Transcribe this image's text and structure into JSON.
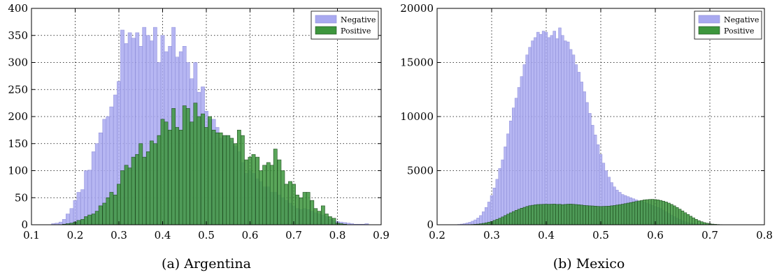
{
  "chart_data": [
    {
      "type": "bar",
      "caption": "(a) Argentina",
      "xlim": [
        0.1,
        0.9
      ],
      "ylim": [
        0,
        400
      ],
      "xticks": [
        "0.1",
        "0.2",
        "0.3",
        "0.4",
        "0.5",
        "0.6",
        "0.7",
        "0.8",
        "0.9"
      ],
      "yticks": [
        "0",
        "50",
        "100",
        "150",
        "200",
        "250",
        "300",
        "350",
        "400"
      ],
      "grid": true,
      "legend": "top-right",
      "bin_width": 0.00833,
      "series": [
        {
          "name": "Negative",
          "color": "#a9a9f0",
          "x": [
            0.15,
            0.158,
            0.167,
            0.175,
            0.183,
            0.192,
            0.2,
            0.208,
            0.217,
            0.225,
            0.233,
            0.242,
            0.25,
            0.258,
            0.267,
            0.275,
            0.283,
            0.292,
            0.3,
            0.308,
            0.317,
            0.325,
            0.333,
            0.342,
            0.35,
            0.358,
            0.367,
            0.375,
            0.383,
            0.392,
            0.4,
            0.408,
            0.417,
            0.425,
            0.433,
            0.442,
            0.45,
            0.458,
            0.467,
            0.475,
            0.483,
            0.492,
            0.5,
            0.508,
            0.517,
            0.525,
            0.533,
            0.542,
            0.55,
            0.558,
            0.567,
            0.575,
            0.583,
            0.592,
            0.6,
            0.608,
            0.617,
            0.625,
            0.633,
            0.642,
            0.65,
            0.658,
            0.667,
            0.675,
            0.683,
            0.692,
            0.7,
            0.708,
            0.717,
            0.725,
            0.733,
            0.742,
            0.75,
            0.758,
            0.767,
            0.775,
            0.783,
            0.792,
            0.8,
            0.808,
            0.817,
            0.825,
            0.833,
            0.842,
            0.85,
            0.858,
            0.867
          ],
          "values": [
            2,
            3,
            5,
            10,
            20,
            30,
            45,
            60,
            65,
            100,
            101,
            135,
            150,
            170,
            195,
            200,
            218,
            240,
            265,
            360,
            335,
            355,
            345,
            355,
            330,
            365,
            350,
            340,
            365,
            300,
            350,
            320,
            330,
            365,
            310,
            320,
            330,
            300,
            270,
            300,
            245,
            255,
            210,
            195,
            195,
            180,
            160,
            165,
            165,
            155,
            145,
            135,
            115,
            95,
            100,
            95,
            85,
            80,
            70,
            70,
            60,
            60,
            55,
            50,
            45,
            40,
            35,
            30,
            28,
            30,
            28,
            25,
            22,
            20,
            18,
            15,
            10,
            8,
            6,
            5,
            4,
            3,
            2,
            1,
            1,
            1,
            2
          ]
        },
        {
          "name": "Positive",
          "color": "#3d963d",
          "x": [
            0.15,
            0.158,
            0.167,
            0.175,
            0.183,
            0.192,
            0.2,
            0.208,
            0.217,
            0.225,
            0.233,
            0.242,
            0.25,
            0.258,
            0.267,
            0.275,
            0.283,
            0.292,
            0.3,
            0.308,
            0.317,
            0.325,
            0.333,
            0.342,
            0.35,
            0.358,
            0.367,
            0.375,
            0.383,
            0.392,
            0.4,
            0.408,
            0.417,
            0.425,
            0.433,
            0.442,
            0.45,
            0.458,
            0.467,
            0.475,
            0.483,
            0.492,
            0.5,
            0.508,
            0.517,
            0.525,
            0.533,
            0.542,
            0.55,
            0.558,
            0.567,
            0.575,
            0.583,
            0.592,
            0.6,
            0.608,
            0.617,
            0.625,
            0.633,
            0.642,
            0.65,
            0.658,
            0.667,
            0.675,
            0.683,
            0.692,
            0.7,
            0.708,
            0.717,
            0.725,
            0.733,
            0.742,
            0.75,
            0.758,
            0.767,
            0.775,
            0.783,
            0.792,
            0.8,
            0.808,
            0.817,
            0.825,
            0.833,
            0.842,
            0.85,
            0.858,
            0.867
          ],
          "values": [
            0,
            0,
            0,
            1,
            2,
            3,
            5,
            8,
            10,
            15,
            18,
            20,
            25,
            35,
            40,
            50,
            60,
            55,
            75,
            100,
            110,
            105,
            125,
            130,
            150,
            125,
            135,
            155,
            150,
            165,
            195,
            190,
            175,
            215,
            180,
            175,
            220,
            215,
            190,
            225,
            200,
            205,
            180,
            200,
            175,
            170,
            170,
            165,
            165,
            160,
            150,
            175,
            165,
            120,
            125,
            130,
            125,
            100,
            110,
            115,
            110,
            140,
            120,
            100,
            75,
            80,
            75,
            55,
            50,
            60,
            60,
            45,
            30,
            25,
            35,
            20,
            15,
            12,
            3,
            2,
            1,
            0,
            0,
            0,
            0,
            0,
            0
          ]
        }
      ]
    },
    {
      "type": "bar",
      "caption": "(b) Mexico",
      "xlim": [
        0.2,
        0.8
      ],
      "ylim": [
        0,
        20000
      ],
      "xticks": [
        "0.2",
        "0.3",
        "0.4",
        "0.5",
        "0.6",
        "0.7",
        "0.8"
      ],
      "yticks": [
        "0",
        "5000",
        "10000",
        "15000",
        "20000"
      ],
      "grid": true,
      "legend": "top-right",
      "bin_width": 0.005,
      "series": [
        {
          "name": "Negative",
          "color": "#a9a9f0",
          "x": [
            0.24,
            0.245,
            0.25,
            0.255,
            0.26,
            0.265,
            0.27,
            0.275,
            0.28,
            0.285,
            0.29,
            0.295,
            0.3,
            0.305,
            0.31,
            0.315,
            0.32,
            0.325,
            0.33,
            0.335,
            0.34,
            0.345,
            0.35,
            0.355,
            0.36,
            0.365,
            0.37,
            0.375,
            0.38,
            0.385,
            0.39,
            0.395,
            0.4,
            0.405,
            0.41,
            0.415,
            0.42,
            0.425,
            0.43,
            0.435,
            0.44,
            0.445,
            0.45,
            0.455,
            0.46,
            0.465,
            0.47,
            0.475,
            0.48,
            0.485,
            0.49,
            0.495,
            0.5,
            0.505,
            0.51,
            0.515,
            0.52,
            0.525,
            0.53,
            0.535,
            0.54,
            0.545,
            0.55,
            0.555,
            0.56,
            0.565,
            0.57,
            0.575,
            0.58,
            0.585,
            0.59,
            0.595,
            0.6,
            0.605,
            0.61,
            0.615,
            0.62,
            0.625,
            0.63,
            0.635,
            0.64,
            0.645,
            0.65,
            0.655,
            0.66,
            0.665,
            0.67,
            0.675,
            0.68,
            0.685,
            0.69,
            0.695,
            0.7,
            0.705,
            0.71,
            0.715,
            0.72,
            0.725,
            0.73,
            0.735,
            0.74
          ],
          "values": [
            30,
            60,
            100,
            160,
            230,
            330,
            450,
            620,
            850,
            1200,
            1600,
            2100,
            2700,
            3400,
            4200,
            5200,
            6000,
            7200,
            8400,
            9600,
            10800,
            11700,
            12700,
            13700,
            14800,
            15700,
            16400,
            17000,
            17300,
            17800,
            17600,
            17900,
            17800,
            17300,
            17500,
            17900,
            17200,
            18200,
            17500,
            17000,
            16900,
            16200,
            15700,
            14800,
            14100,
            13200,
            12300,
            11300,
            10300,
            9200,
            8300,
            7400,
            6500,
            5700,
            5000,
            4400,
            3900,
            3500,
            3200,
            3000,
            2800,
            2700,
            2600,
            2500,
            2400,
            2300,
            2200,
            2200,
            2100,
            2000,
            1900,
            1800,
            1700,
            1600,
            1500,
            1350,
            1200,
            1050,
            900,
            750,
            620,
            500,
            380,
            280,
            200,
            140,
            100,
            70,
            50,
            35,
            20,
            12,
            6,
            3,
            2,
            1,
            0,
            0,
            0,
            0,
            0
          ]
        },
        {
          "name": "Positive",
          "color": "#3d963d",
          "x": [
            0.24,
            0.245,
            0.25,
            0.255,
            0.26,
            0.265,
            0.27,
            0.275,
            0.28,
            0.285,
            0.29,
            0.295,
            0.3,
            0.305,
            0.31,
            0.315,
            0.32,
            0.325,
            0.33,
            0.335,
            0.34,
            0.345,
            0.35,
            0.355,
            0.36,
            0.365,
            0.37,
            0.375,
            0.38,
            0.385,
            0.39,
            0.395,
            0.4,
            0.405,
            0.41,
            0.415,
            0.42,
            0.425,
            0.43,
            0.435,
            0.44,
            0.445,
            0.45,
            0.455,
            0.46,
            0.465,
            0.47,
            0.475,
            0.48,
            0.485,
            0.49,
            0.495,
            0.5,
            0.505,
            0.51,
            0.515,
            0.52,
            0.525,
            0.53,
            0.535,
            0.54,
            0.545,
            0.55,
            0.555,
            0.56,
            0.565,
            0.57,
            0.575,
            0.58,
            0.585,
            0.59,
            0.595,
            0.6,
            0.605,
            0.61,
            0.615,
            0.62,
            0.625,
            0.63,
            0.635,
            0.64,
            0.645,
            0.65,
            0.655,
            0.66,
            0.665,
            0.67,
            0.675,
            0.68,
            0.685,
            0.69,
            0.695,
            0.7,
            0.705,
            0.71,
            0.715,
            0.72,
            0.725,
            0.73,
            0.735,
            0.74
          ],
          "values": [
            2,
            4,
            6,
            10,
            15,
            25,
            40,
            60,
            90,
            130,
            180,
            240,
            310,
            400,
            500,
            600,
            720,
            850,
            980,
            1100,
            1220,
            1330,
            1430,
            1530,
            1610,
            1690,
            1760,
            1800,
            1840,
            1870,
            1880,
            1890,
            1900,
            1890,
            1900,
            1910,
            1880,
            1890,
            1860,
            1880,
            1900,
            1910,
            1890,
            1870,
            1850,
            1820,
            1790,
            1770,
            1750,
            1740,
            1720,
            1700,
            1690,
            1700,
            1710,
            1720,
            1750,
            1780,
            1820,
            1860,
            1900,
            1950,
            2000,
            2050,
            2100,
            2150,
            2200,
            2250,
            2300,
            2320,
            2340,
            2350,
            2330,
            2300,
            2250,
            2180,
            2100,
            2000,
            1880,
            1750,
            1600,
            1440,
            1280,
            1110,
            950,
            790,
            640,
            500,
            380,
            280,
            200,
            140,
            90,
            60,
            40,
            25,
            15,
            8,
            5,
            3,
            1
          ]
        }
      ]
    }
  ]
}
